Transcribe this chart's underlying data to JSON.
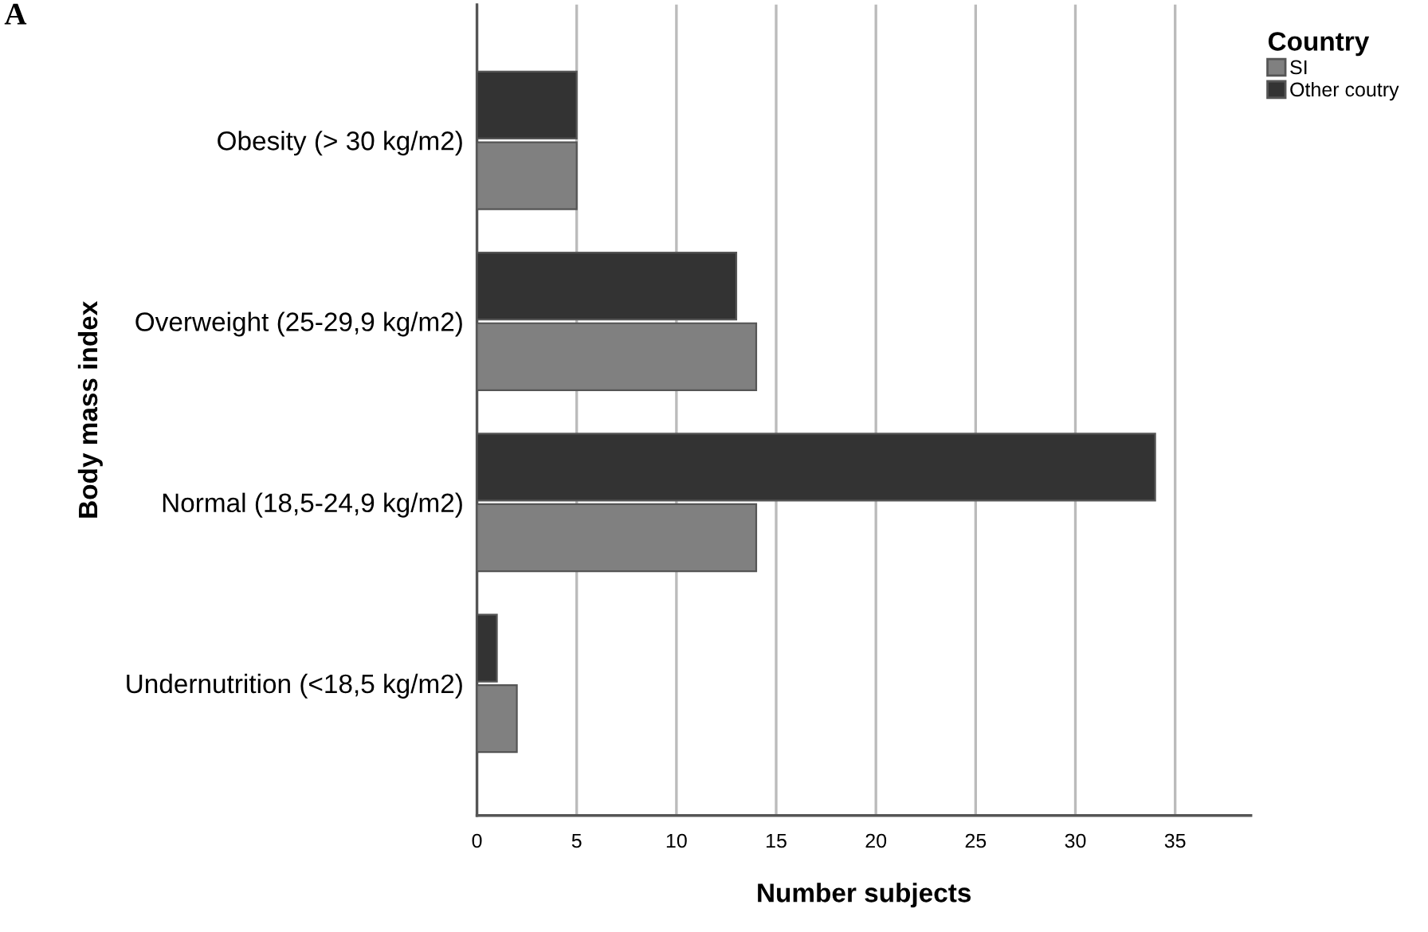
{
  "chart_data": {
    "type": "bar",
    "orientation": "horizontal",
    "xlabel": "Number subjects",
    "ylabel": "Body mass index",
    "legend_title": "Country",
    "categories": [
      "Obesity (> 30 kg/m2)",
      "Overweight (25-29,9 kg/m2)",
      "Normal (18,5-24,9 kg/m2)",
      "Undernutrition (<18,5 kg/m2)"
    ],
    "series": [
      {
        "name": "SI",
        "color": "#808080",
        "values": [
          5,
          14,
          14,
          2
        ]
      },
      {
        "name": "Other coutry",
        "color": "#333333",
        "values": [
          5,
          13,
          34,
          1
        ]
      }
    ],
    "xlim": [
      0,
      38.8
    ],
    "xticks": [
      0,
      5,
      10,
      15,
      20,
      25,
      30,
      35
    ],
    "grid": "x",
    "legend": "top right",
    "annotations": [
      "A"
    ]
  }
}
